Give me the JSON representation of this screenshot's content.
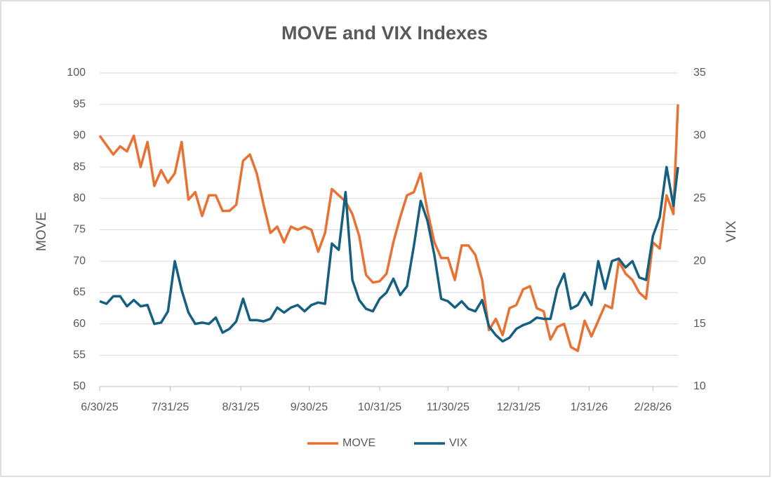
{
  "chart_data": {
    "type": "line",
    "title": "MOVE and VIX Indexes",
    "y_label": "MOVE",
    "y2_label": "VIX",
    "x": [
      "6/30/25",
      "7/3/25",
      "7/6/25",
      "7/9/25",
      "7/12/25",
      "7/15/25",
      "7/18/25",
      "7/21/25",
      "7/24/25",
      "7/27/25",
      "7/30/25",
      "8/2/25",
      "8/5/25",
      "8/8/25",
      "8/11/25",
      "8/14/25",
      "8/17/25",
      "8/20/25",
      "8/23/25",
      "8/26/25",
      "8/29/25",
      "9/1/25",
      "9/4/25",
      "9/7/25",
      "9/10/25",
      "9/13/25",
      "9/16/25",
      "9/19/25",
      "9/22/25",
      "9/25/25",
      "9/28/25",
      "10/1/25",
      "10/4/25",
      "10/7/25",
      "10/10/25",
      "10/13/25",
      "10/16/25",
      "10/19/25",
      "10/22/25",
      "10/25/25",
      "10/28/25",
      "10/31/25",
      "11/3/25",
      "11/6/25",
      "11/9/25",
      "11/12/25",
      "11/15/25",
      "11/18/25",
      "11/21/25",
      "11/24/25",
      "11/27/25",
      "11/30/25",
      "12/3/25",
      "12/6/25",
      "12/9/25",
      "12/12/25",
      "12/15/25",
      "12/18/25",
      "12/21/25",
      "12/24/25",
      "12/27/25",
      "12/30/25",
      "1/2/26",
      "1/5/26",
      "1/8/26",
      "1/11/26",
      "1/14/26",
      "1/17/26",
      "1/20/26",
      "1/23/26",
      "1/26/26",
      "1/29/26",
      "2/1/26",
      "2/4/26",
      "2/7/26",
      "2/10/26",
      "2/13/26",
      "2/16/26",
      "2/19/26",
      "2/22/26",
      "2/25/26",
      "2/28/26",
      "3/3/26",
      "3/6/26",
      "3/9/26",
      "3/11/26"
    ],
    "series": [
      {
        "name": "MOVE",
        "color": "#e97132",
        "axis": "y",
        "values": [
          90,
          88.5,
          87,
          88.3,
          87.5,
          90,
          85,
          89,
          82,
          84.5,
          82.5,
          84,
          89,
          79.8,
          81,
          77.2,
          80.5,
          80.5,
          78,
          78,
          79,
          86,
          87,
          84,
          79,
          74.5,
          75.5,
          73,
          75.5,
          75,
          75.5,
          75,
          71.5,
          74.5,
          81.5,
          80.5,
          79.5,
          77.5,
          74,
          67.8,
          66.6,
          66.8,
          68,
          73,
          77,
          80.5,
          81,
          84,
          78,
          73,
          70.5,
          70.5,
          67,
          72.5,
          72.5,
          71,
          67,
          59,
          60.8,
          58.2,
          62.5,
          63,
          65.5,
          66,
          62.5,
          62,
          57.5,
          59.5,
          60,
          56.3,
          55.7,
          60.5,
          58,
          60.5,
          63,
          62.5,
          70,
          68,
          67,
          65,
          64,
          73,
          72,
          80.5,
          77.5,
          95
        ]
      },
      {
        "name": "VIX",
        "color": "#156082",
        "axis": "y2",
        "values": [
          16.8,
          16.6,
          17.2,
          17.2,
          16.4,
          16.9,
          16.4,
          16.5,
          15,
          15.1,
          16,
          20,
          17.7,
          15.9,
          15,
          15.1,
          15,
          15.5,
          14.3,
          14.6,
          15.2,
          17,
          15.3,
          15.3,
          15.2,
          15.4,
          16.3,
          15.9,
          16.3,
          16.5,
          16,
          16.5,
          16.7,
          16.6,
          21.4,
          20.9,
          25.5,
          18.5,
          16.9,
          16.2,
          16,
          17,
          17.5,
          18.6,
          17.3,
          18,
          21.2,
          24.8,
          23.2,
          20.5,
          17,
          16.8,
          16.3,
          16.8,
          16.2,
          16,
          16.9,
          14.8,
          14.1,
          13.6,
          13.9,
          14.6,
          14.9,
          15.1,
          15.5,
          15.4,
          15.4,
          17.8,
          19,
          16.2,
          16.5,
          17.5,
          16.5,
          20,
          17.8,
          20,
          20.2,
          19.5,
          20,
          18.7,
          18.5,
          22,
          23.5,
          27.5,
          24.4,
          27.5
        ]
      }
    ],
    "xlim": [
      "6/30/25",
      "3/11/26"
    ],
    "xticks": [
      "6/30/25",
      "7/31/25",
      "8/31/25",
      "9/30/25",
      "10/31/25",
      "11/30/25",
      "12/31/25",
      "1/31/26",
      "2/28/26"
    ],
    "ylim": [
      50,
      100
    ],
    "yticks": [
      50,
      55,
      60,
      65,
      70,
      75,
      80,
      85,
      90,
      95,
      100
    ],
    "y2lim": [
      10,
      35
    ],
    "y2ticks": [
      10,
      15,
      20,
      25,
      30,
      35
    ],
    "grid": true,
    "legend": "bottom"
  }
}
